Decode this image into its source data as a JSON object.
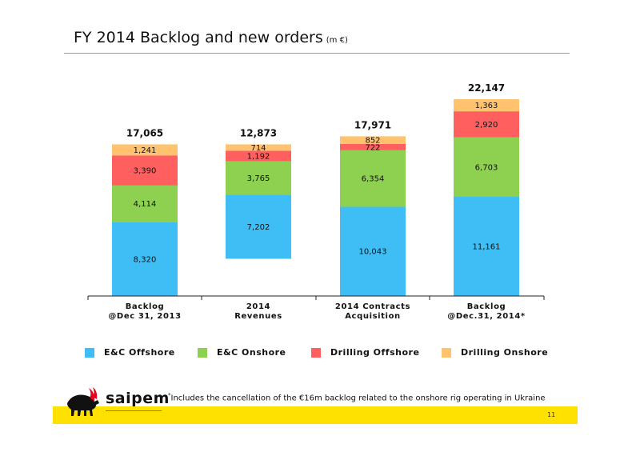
{
  "page": {
    "title": "FY 2014 Backlog and new orders",
    "title_unit": "(m €)",
    "footnote_mark": "*",
    "footnote": "Includes the cancellation of the €16m backlog related to the onshore rig operating in Ukraine",
    "page_number": "11",
    "brand": "saipem"
  },
  "legend": {
    "items": [
      {
        "label": "E&C Offshore",
        "color": "#3EBEF4"
      },
      {
        "label": "E&C Onshore",
        "color": "#8ED04F"
      },
      {
        "label": "Drilling Offshore",
        "color": "#FF5F5F"
      },
      {
        "label": "Drilling Onshore",
        "color": "#FFC370"
      }
    ]
  },
  "chart_data": {
    "type": "bar",
    "subtype": "waterfall-stacked",
    "categories": [
      "Backlog\n@Dec 31, 2013",
      "2014\nRevenues",
      "2014 Contracts\nAcquisition",
      "Backlog\n@Dec.31, 2014*"
    ],
    "totals": [
      "17,065",
      "12,873",
      "17,971",
      "22,147"
    ],
    "base": [
      0,
      4192,
      0,
      0
    ],
    "series": [
      {
        "name": "E&C Offshore",
        "color": "#3EBEF4",
        "values": [
          8320,
          7202,
          10043,
          11161
        ],
        "labels": [
          "8,320",
          "7,202",
          "10,043",
          "11,161"
        ]
      },
      {
        "name": "E&C Onshore",
        "color": "#8ED04F",
        "values": [
          4114,
          3765,
          6354,
          6703
        ],
        "labels": [
          "4,114",
          "3,765",
          "6,354",
          "6,703"
        ]
      },
      {
        "name": "Drilling Offshore",
        "color": "#FF5F5F",
        "values": [
          3390,
          1192,
          722,
          2920
        ],
        "labels": [
          "3,390",
          "1,192",
          "722",
          "2,920"
        ]
      },
      {
        "name": "Drilling Onshore",
        "color": "#FFC370",
        "values": [
          1241,
          714,
          852,
          1363
        ],
        "labels": [
          "1,241",
          "714",
          "852",
          "1,363"
        ]
      }
    ],
    "ylim": [
      0,
      22147
    ],
    "legend_position": "bottom",
    "grid": false
  }
}
